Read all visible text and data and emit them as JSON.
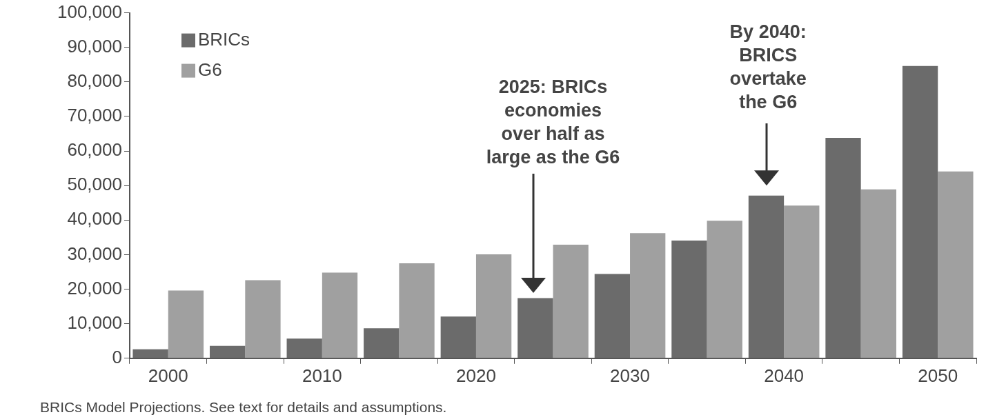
{
  "chart_data": {
    "type": "bar",
    "categories": [
      "2000",
      null,
      "2010",
      null,
      "2020",
      null,
      "2030",
      null,
      "2040",
      null,
      "2050"
    ],
    "series": [
      {
        "name": "BRICs",
        "color": "#6b6b6b",
        "values": [
          2600,
          3600,
          5700,
          8700,
          12100,
          17400,
          24400,
          34100,
          47100,
          63800,
          84600
        ]
      },
      {
        "name": "G6",
        "color": "#a0a0a0",
        "values": [
          19600,
          22600,
          24800,
          27500,
          30100,
          32900,
          36200,
          39800,
          44200,
          48900,
          54100
        ]
      }
    ],
    "ylim": [
      0,
      100000
    ],
    "yticks": [
      0,
      {
        "value": 10000,
        "label": "10,000"
      },
      {
        "value": 20000,
        "label": "20,000"
      },
      {
        "value": 30000,
        "label": "30,000"
      },
      {
        "value": 40000,
        "label": "40,000"
      },
      {
        "value": 50000,
        "label": "50,000"
      },
      {
        "value": 60000,
        "label": "60,000"
      },
      {
        "value": 70000,
        "label": "70,000"
      },
      {
        "value": 80000,
        "label": "80,000"
      },
      {
        "value": 90000,
        "label": "90,000"
      },
      {
        "value": 100000,
        "label": "100,000"
      }
    ],
    "grid": false,
    "legend": "top left",
    "annotations": [
      "2025: BRICs\neconomies\nover half as\nlarge as the G6",
      "By 2040:\nBRICS\novertake\nthe G6",
      "BRICs Model Projections. See text for details and assumptions."
    ]
  }
}
